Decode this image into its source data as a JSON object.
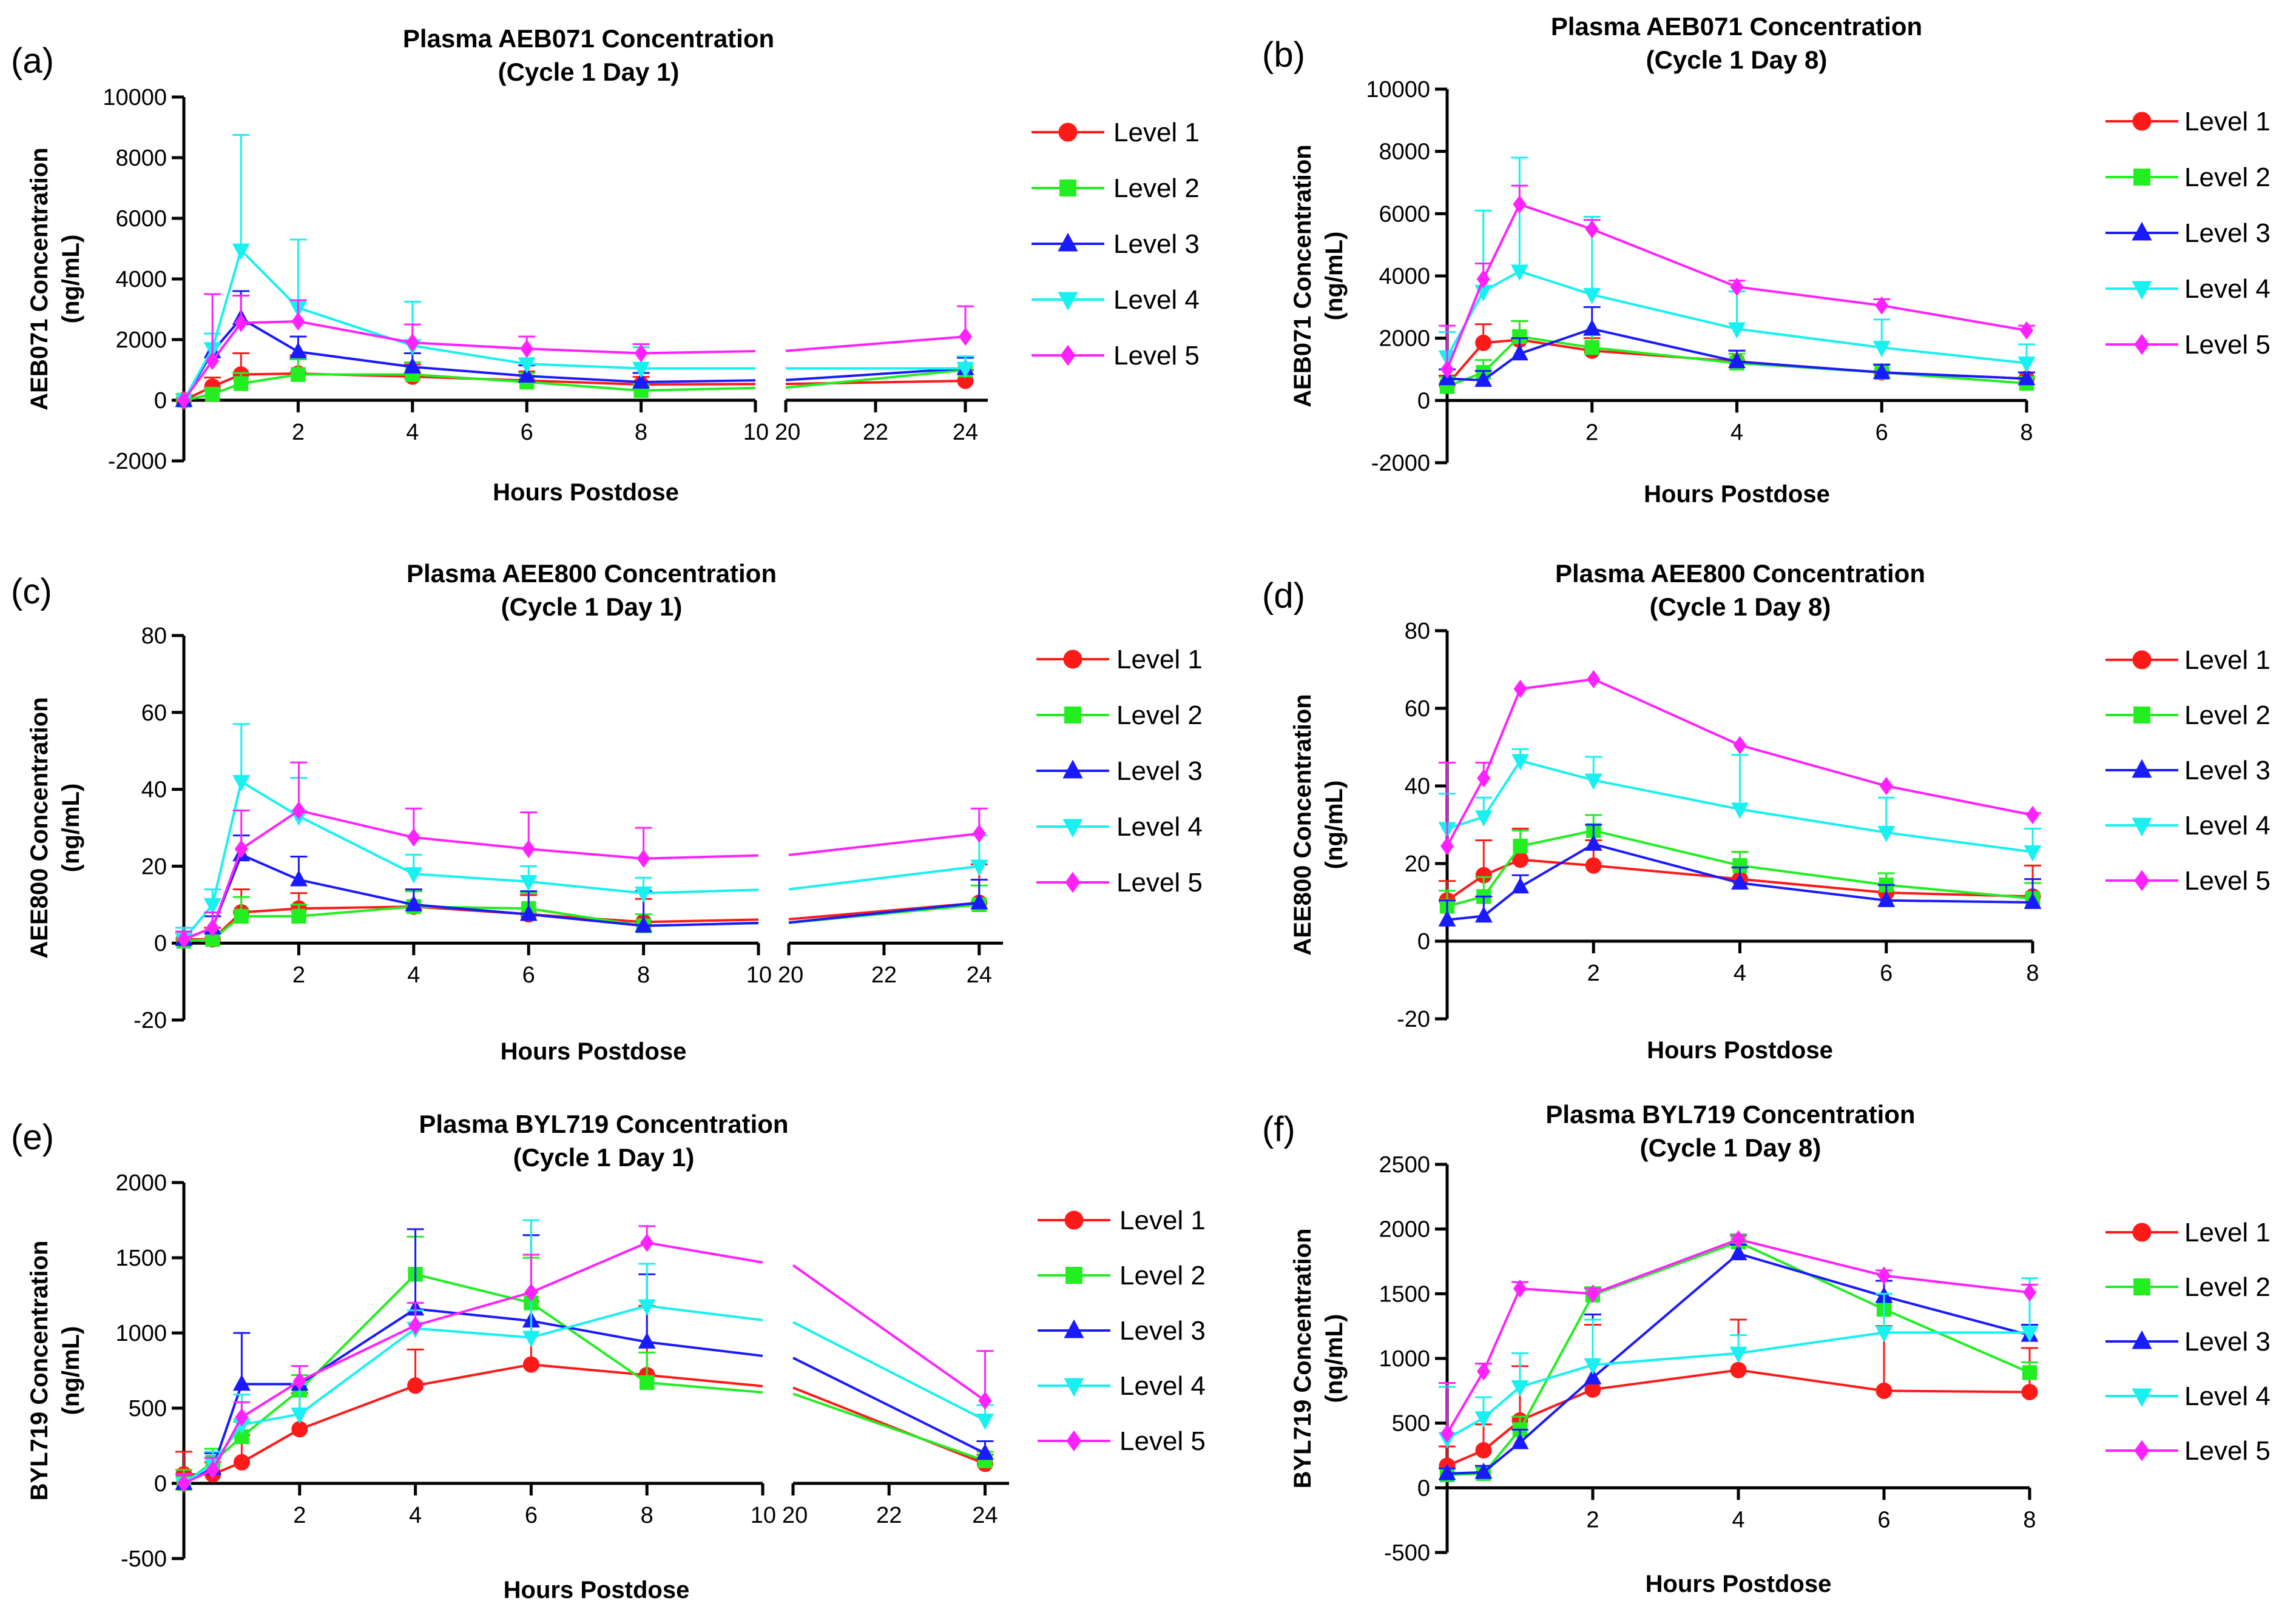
{
  "chart_data": [
    {
      "type": "line",
      "panel_label": "(a)",
      "title": "Plasma AEB071 Concentration",
      "subtitle": "(Cycle 1 Day 1)",
      "xlabel": "Hours Postdose",
      "ylabel": "AEB071 Concentration",
      "ylabel2": "(ng/mL)",
      "broken_axis": true,
      "x_segments": [
        [
          0,
          10
        ],
        [
          20,
          24.5
        ]
      ],
      "xticks": [
        2,
        4,
        6,
        8,
        10,
        20,
        22,
        24
      ],
      "xtick_labels": [
        "2",
        "4",
        "6",
        "8",
        "10",
        "20",
        "22",
        "24"
      ],
      "ylim": [
        -2000,
        10000
      ],
      "yticks": [
        -2000,
        0,
        2000,
        4000,
        6000,
        8000,
        10000
      ],
      "ytick_labels": [
        "-2000",
        "0",
        "2000",
        "4000",
        "6000",
        "8000",
        "10000"
      ],
      "legend_position": "right",
      "x": [
        0,
        0.5,
        1,
        2,
        4,
        6,
        8,
        24
      ],
      "series": [
        {
          "name": "Level 1",
          "color": "#ff1a1a",
          "marker": "circle",
          "values": [
            0,
            450,
            850,
            880,
            780,
            650,
            520,
            640
          ],
          "errors": [
            0,
            300,
            700,
            600,
            400,
            300,
            250,
            350
          ]
        },
        {
          "name": "Level 2",
          "color": "#22ee22",
          "marker": "square",
          "values": [
            0,
            200,
            550,
            850,
            850,
            600,
            320,
            1000
          ],
          "errors": [
            0,
            150,
            350,
            500,
            400,
            300,
            200,
            400
          ]
        },
        {
          "name": "Level 3",
          "color": "#1a1aff",
          "marker": "triangle-up",
          "values": [
            0,
            1600,
            2700,
            1600,
            1100,
            800,
            600,
            1050
          ],
          "errors": [
            0,
            600,
            900,
            500,
            450,
            350,
            300,
            350
          ]
        },
        {
          "name": "Level 4",
          "color": "#19f0f0",
          "marker": "triangle-down",
          "values": [
            0,
            1700,
            4950,
            3050,
            1800,
            1200,
            1050,
            1050
          ],
          "errors": [
            0,
            500,
            3800,
            2250,
            1450,
            900,
            700,
            400
          ]
        },
        {
          "name": "Level 5",
          "color": "#ff22ff",
          "marker": "diamond",
          "values": [
            0,
            1300,
            2550,
            2600,
            1900,
            1700,
            1550,
            2100
          ],
          "errors": [
            0,
            2200,
            900,
            700,
            600,
            400,
            300,
            1000
          ]
        }
      ]
    },
    {
      "type": "line",
      "panel_label": "(b)",
      "title": "Plasma AEB071 Concentration",
      "subtitle": "(Cycle 1 Day 8)",
      "xlabel": "Hours Postdose",
      "ylabel": "AEB071 Concentration",
      "ylabel2": "(ng/mL)",
      "broken_axis": false,
      "x_segments": [
        [
          0,
          8
        ]
      ],
      "xticks": [
        2,
        4,
        6,
        8
      ],
      "xtick_labels": [
        "2",
        "4",
        "6",
        "8"
      ],
      "ylim": [
        -2000,
        10000
      ],
      "yticks": [
        -2000,
        0,
        2000,
        4000,
        6000,
        8000,
        10000
      ],
      "ytick_labels": [
        "-2000",
        "0",
        "2000",
        "4000",
        "6000",
        "8000",
        "10000"
      ],
      "legend_position": "right",
      "x": [
        0,
        0.5,
        1,
        2,
        4,
        6,
        8
      ],
      "series": [
        {
          "name": "Level 1",
          "color": "#ff1a1a",
          "marker": "circle",
          "values": [
            500,
            1850,
            1950,
            1600,
            1250,
            900,
            700
          ],
          "errors": [
            300,
            600,
            600,
            400,
            350,
            250,
            200
          ]
        },
        {
          "name": "Level 2",
          "color": "#22ee22",
          "marker": "square",
          "values": [
            450,
            900,
            2050,
            1700,
            1200,
            900,
            550
          ],
          "errors": [
            300,
            400,
            500,
            400,
            300,
            250,
            200
          ]
        },
        {
          "name": "Level 3",
          "color": "#1a1aff",
          "marker": "triangle-up",
          "values": [
            700,
            650,
            1500,
            2300,
            1250,
            900,
            700
          ],
          "errors": [
            300,
            300,
            500,
            700,
            350,
            250,
            200
          ]
        },
        {
          "name": "Level 4",
          "color": "#19f0f0",
          "marker": "triangle-down",
          "values": [
            1400,
            3500,
            4150,
            3400,
            2300,
            1700,
            1200
          ],
          "errors": [
            800,
            2600,
            3650,
            2500,
            1200,
            900,
            600
          ]
        },
        {
          "name": "Level 5",
          "color": "#ff22ff",
          "marker": "diamond",
          "values": [
            1000,
            3900,
            6300,
            5500,
            3650,
            3050,
            2250
          ],
          "errors": [
            1400,
            500,
            600,
            300,
            200,
            200,
            150
          ]
        }
      ]
    },
    {
      "type": "line",
      "panel_label": "(c)",
      "title": "Plasma AEE800 Concentration",
      "subtitle": "(Cycle 1 Day 1)",
      "xlabel": "Hours Postdose",
      "ylabel": "AEE800 Concentration",
      "ylabel2": "(ng/mL)",
      "broken_axis": true,
      "x_segments": [
        [
          0,
          10
        ],
        [
          20,
          24.5
        ]
      ],
      "xticks": [
        2,
        4,
        6,
        8,
        10,
        20,
        22,
        24
      ],
      "xtick_labels": [
        "2",
        "4",
        "6",
        "8",
        "10",
        "20",
        "22",
        "24"
      ],
      "ylim": [
        -20,
        80
      ],
      "yticks": [
        -20,
        0,
        20,
        40,
        60,
        80
      ],
      "ytick_labels": [
        "-20",
        "0",
        "20",
        "40",
        "60",
        "80"
      ],
      "legend_position": "right",
      "x": [
        0,
        0.5,
        1,
        2,
        4,
        6,
        8,
        24
      ],
      "series": [
        {
          "name": "Level 1",
          "color": "#ff1a1a",
          "marker": "circle",
          "values": [
            1,
            1,
            8,
            9,
            9.5,
            7.5,
            5.5,
            10.5
          ],
          "errors": [
            3,
            3,
            6,
            4,
            4,
            5,
            6,
            10
          ]
        },
        {
          "name": "Level 2",
          "color": "#22ee22",
          "marker": "square",
          "values": [
            0.5,
            1,
            7,
            7,
            9.5,
            9,
            4.5,
            10
          ],
          "errors": [
            2,
            2,
            5,
            3,
            4,
            4,
            3,
            5
          ]
        },
        {
          "name": "Level 3",
          "color": "#1a1aff",
          "marker": "triangle-up",
          "values": [
            1,
            4,
            23,
            16.5,
            10,
            7.5,
            4.5,
            10.5
          ],
          "errors": [
            2,
            3,
            5,
            6,
            4,
            6,
            9,
            6
          ]
        },
        {
          "name": "Level 4",
          "color": "#19f0f0",
          "marker": "triangle-down",
          "values": [
            1,
            10,
            42,
            33,
            18,
            16,
            13,
            20
          ],
          "errors": [
            3,
            4,
            15,
            10,
            5,
            4,
            4,
            8
          ]
        },
        {
          "name": "Level 5",
          "color": "#ff22ff",
          "marker": "diamond",
          "values": [
            1,
            4,
            24.5,
            34.5,
            27.5,
            24.5,
            22,
            28.5
          ],
          "errors": [
            2,
            4,
            10,
            12.5,
            7.5,
            9.5,
            8,
            6.5
          ]
        }
      ]
    },
    {
      "type": "line",
      "panel_label": "(d)",
      "title": "Plasma AEE800 Concentration",
      "subtitle": "(Cycle 1 Day 8)",
      "xlabel": "Hours Postdose",
      "ylabel": "AEE800 Concentration",
      "ylabel2": "(ng/mL)",
      "broken_axis": false,
      "x_segments": [
        [
          0,
          8
        ]
      ],
      "xticks": [
        2,
        4,
        6,
        8
      ],
      "xtick_labels": [
        "2",
        "4",
        "6",
        "8"
      ],
      "ylim": [
        -20,
        80
      ],
      "yticks": [
        -20,
        0,
        20,
        40,
        60,
        80
      ],
      "ytick_labels": [
        "-20",
        "0",
        "20",
        "40",
        "60",
        "80"
      ],
      "legend_position": "right",
      "x": [
        0,
        0.5,
        1,
        2,
        4,
        6,
        8
      ],
      "series": [
        {
          "name": "Level 1",
          "color": "#ff1a1a",
          "marker": "circle",
          "values": [
            10.5,
            17,
            21,
            19.5,
            16,
            12.5,
            11.5
          ],
          "errors": [
            5,
            9,
            8,
            6.5,
            7,
            5,
            8
          ]
        },
        {
          "name": "Level 2",
          "color": "#22ee22",
          "marker": "square",
          "values": [
            9,
            11.5,
            24.5,
            28.5,
            19.5,
            14.5,
            11
          ],
          "errors": [
            4,
            5,
            4,
            4,
            3.5,
            3,
            4
          ]
        },
        {
          "name": "Level 3",
          "color": "#1a1aff",
          "marker": "triangle-up",
          "values": [
            5.5,
            6.5,
            14,
            25,
            15,
            10.5,
            10
          ],
          "errors": [
            5,
            5,
            3,
            5,
            4,
            4,
            6
          ]
        },
        {
          "name": "Level 4",
          "color": "#19f0f0",
          "marker": "triangle-down",
          "values": [
            29,
            32,
            46.5,
            41.5,
            34,
            28,
            23
          ],
          "errors": [
            9,
            5,
            3,
            6,
            14,
            9,
            6
          ]
        },
        {
          "name": "Level 5",
          "color": "#ff22ff",
          "marker": "diamond",
          "values": [
            24.5,
            42,
            65,
            67.5,
            50.5,
            40,
            32.5
          ],
          "errors": [
            21.5,
            4,
            0,
            0,
            0,
            0,
            0.5
          ]
        }
      ]
    },
    {
      "type": "line",
      "panel_label": "(e)",
      "title": "Plasma BYL719 Concentration",
      "subtitle": "(Cycle 1 Day 1)",
      "xlabel": "Hours Postdose",
      "ylabel": "BYL719 Concentration",
      "ylabel2": "(ng/mL)",
      "broken_axis": true,
      "x_segments": [
        [
          0,
          10
        ],
        [
          20,
          24.5
        ]
      ],
      "xticks": [
        2,
        4,
        6,
        8,
        10,
        20,
        22,
        24
      ],
      "xtick_labels": [
        "2",
        "4",
        "6",
        "8",
        "10",
        "20",
        "22",
        "24"
      ],
      "ylim": [
        -500,
        2000
      ],
      "yticks": [
        -500,
        0,
        500,
        1000,
        1500,
        2000
      ],
      "ytick_labels": [
        "-500",
        "0",
        "500",
        "1000",
        "1500",
        "2000"
      ],
      "legend_position": "right",
      "x": [
        0,
        0.5,
        1,
        2,
        4,
        6,
        8,
        24
      ],
      "series": [
        {
          "name": "Level 1",
          "color": "#ff1a1a",
          "marker": "circle",
          "values": [
            60,
            60,
            140,
            360,
            650,
            790,
            720,
            130
          ],
          "errors": [
            150,
            80,
            180,
            240,
            240,
            420,
            460,
            60
          ]
        },
        {
          "name": "Level 2",
          "color": "#22ee22",
          "marker": "square",
          "values": [
            0,
            140,
            310,
            620,
            1390,
            1200,
            670,
            150
          ],
          "errors": [
            90,
            90,
            100,
            100,
            250,
            300,
            200,
            60
          ]
        },
        {
          "name": "Level 3",
          "color": "#1a1aff",
          "marker": "triangle-up",
          "values": [
            0,
            100,
            660,
            660,
            1160,
            1080,
            940,
            200
          ],
          "errors": [
            60,
            100,
            340,
            120,
            530,
            570,
            450,
            80
          ]
        },
        {
          "name": "Level 4",
          "color": "#19f0f0",
          "marker": "triangle-down",
          "values": [
            0,
            130,
            390,
            460,
            1030,
            970,
            1180,
            420
          ],
          "errors": [
            60,
            80,
            200,
            200,
            120,
            780,
            280,
            100
          ]
        },
        {
          "name": "Level 5",
          "color": "#ff22ff",
          "marker": "diamond",
          "values": [
            0,
            90,
            440,
            680,
            1050,
            1270,
            1600,
            550
          ],
          "errors": [
            60,
            80,
            100,
            100,
            150,
            250,
            110,
            330
          ]
        }
      ]
    },
    {
      "type": "line",
      "panel_label": "(f)",
      "title": "Plasma BYL719 Concentration",
      "subtitle": "(Cycle 1 Day 8)",
      "xlabel": "Hours Postdose",
      "ylabel": "BYL719 Concentration",
      "ylabel2": "(ng/mL)",
      "broken_axis": false,
      "x_segments": [
        [
          0,
          8
        ]
      ],
      "xticks": [
        2,
        4,
        6,
        8
      ],
      "xtick_labels": [
        "2",
        "4",
        "6",
        "8"
      ],
      "ylim": [
        -500,
        2500
      ],
      "yticks": [
        -500,
        0,
        500,
        1000,
        1500,
        2000,
        2500
      ],
      "ytick_labels": [
        "-500",
        "0",
        "500",
        "1000",
        "1500",
        "2000",
        "2500"
      ],
      "legend_position": "right",
      "x": [
        0,
        0.5,
        1,
        2,
        4,
        6,
        8
      ],
      "series": [
        {
          "name": "Level 1",
          "color": "#ff1a1a",
          "marker": "circle",
          "values": [
            170,
            290,
            520,
            760,
            910,
            750,
            740
          ],
          "errors": [
            150,
            200,
            420,
            500,
            390,
            500,
            340
          ]
        },
        {
          "name": "Level 2",
          "color": "#22ee22",
          "marker": "square",
          "values": [
            100,
            110,
            450,
            1490,
            1900,
            1380,
            890
          ],
          "errors": [
            50,
            50,
            100,
            60,
            60,
            120,
            80
          ]
        },
        {
          "name": "Level 3",
          "color": "#1a1aff",
          "marker": "triangle-up",
          "values": [
            110,
            120,
            350,
            850,
            1810,
            1480,
            1180
          ],
          "errors": [
            40,
            50,
            100,
            490,
            70,
            120,
            80
          ]
        },
        {
          "name": "Level 4",
          "color": "#19f0f0",
          "marker": "triangle-down",
          "values": [
            380,
            540,
            780,
            950,
            1040,
            1200,
            1200
          ],
          "errors": [
            400,
            160,
            260,
            350,
            140,
            300,
            420
          ]
        },
        {
          "name": "Level 5",
          "color": "#ff22ff",
          "marker": "diamond",
          "values": [
            420,
            900,
            1540,
            1500,
            1920,
            1640,
            1510
          ],
          "errors": [
            390,
            60,
            50,
            40,
            30,
            40,
            60
          ]
        }
      ]
    }
  ]
}
